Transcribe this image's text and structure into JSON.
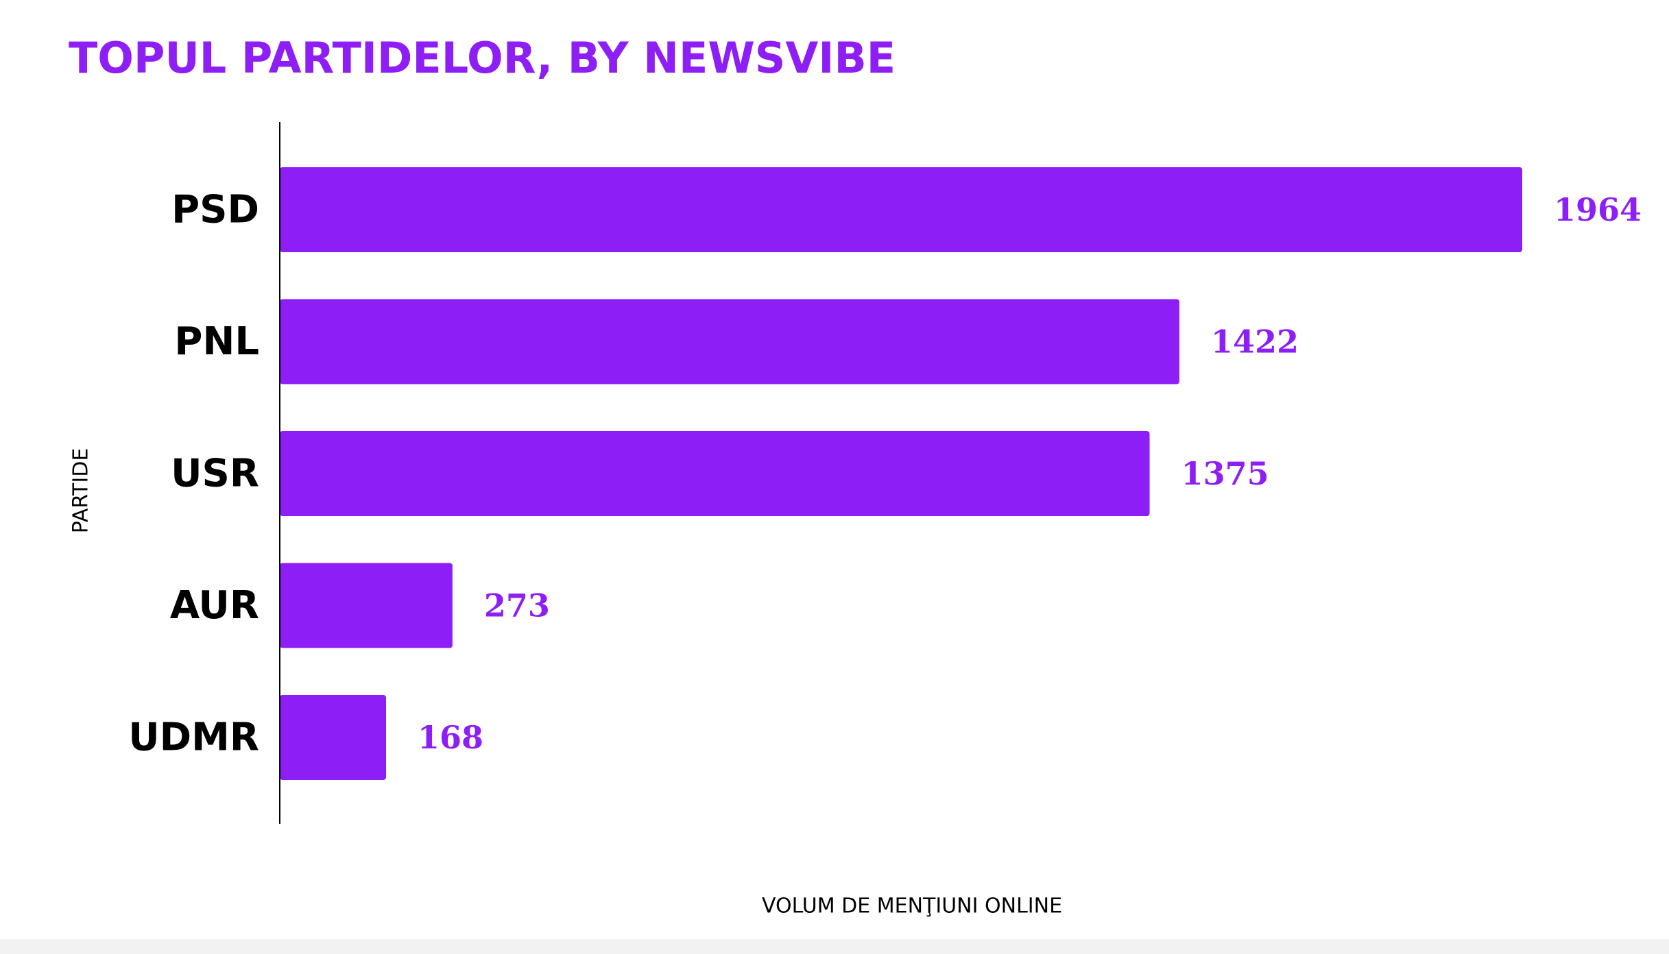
{
  "chart_data": {
    "type": "bar",
    "orientation": "horizontal",
    "title": "TOPUL PARTIDELOR, BY NEWSVIBE",
    "xlabel": "VOLUM DE MENŢIUNI ONLINE",
    "ylabel": "PARTIDE",
    "categories": [
      "PSD",
      "PNL",
      "USR",
      "AUR",
      "UDMR"
    ],
    "values": [
      1964,
      1422,
      1375,
      273,
      168
    ],
    "data_labels": [
      "1964",
      "1422",
      "1375",
      "273",
      "168"
    ],
    "xlim": [
      0,
      1964
    ],
    "grid": false,
    "legend": "none",
    "colors": {
      "bar": "#8E1EF6",
      "title": "#8E1EF6",
      "value_label": "#8E1EF6",
      "category_label": "#000000",
      "axis_line": "#000000"
    }
  }
}
